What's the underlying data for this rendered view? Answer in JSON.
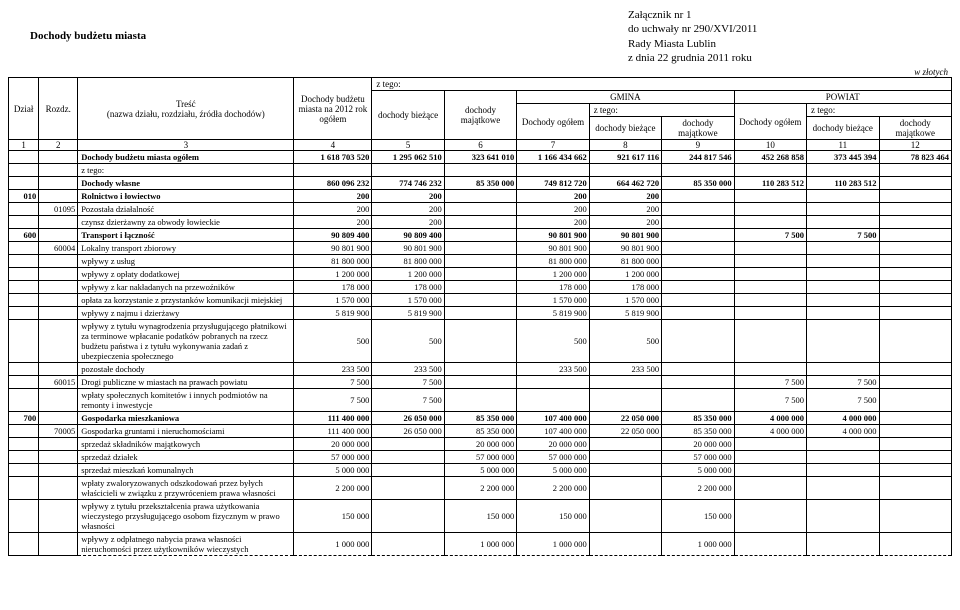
{
  "attachment": {
    "line1": "Załącznik nr 1",
    "line2": "do uchwały nr 290/XVI/2011",
    "line3": "Rady Miasta Lublin",
    "line4": "z dnia 22 grudnia 2011 roku"
  },
  "title_left": "Dochody budżetu miasta",
  "currency_note": "w złotych",
  "headers": {
    "dzial": "Dział",
    "rozdz": "Rozdz.",
    "tresc": "Treść\n(nazwa działu, rozdziału, źródła dochodów)",
    "doch_budzet": "Dochody budżetu miasta na 2012 rok ogółem",
    "z_tego": "z tego:",
    "gmina": "GMINA",
    "powiat": "POWIAT",
    "doch_biezace": "dochody bieżące",
    "doch_majatkowe": "dochody majątkowe",
    "doch_ogolem": "Dochody ogółem"
  },
  "colnums": [
    "1",
    "2",
    "3",
    "4",
    "5",
    "6",
    "7",
    "8",
    "9",
    "10",
    "11",
    "12"
  ],
  "rows": [
    {
      "style": "bold",
      "d": "",
      "r": "",
      "t": "Dochody budżetu miasta ogółem",
      "v": [
        "1 618 703 520",
        "1 295 062 510",
        "323 641 010",
        "1 166 434 662",
        "921 617 116",
        "244 817 546",
        "452 268 858",
        "373 445 394",
        "78 823 464"
      ]
    },
    {
      "style": "",
      "d": "",
      "r": "",
      "t": "z tego:",
      "v": [
        "",
        "",
        "",
        "",
        "",
        "",
        "",
        "",
        ""
      ]
    },
    {
      "style": "bold",
      "d": "",
      "r": "",
      "t": "Dochody własne",
      "v": [
        "860 096 232",
        "774 746 232",
        "85 350 000",
        "749 812 720",
        "664 462 720",
        "85 350 000",
        "110 283 512",
        "110 283 512",
        ""
      ]
    },
    {
      "style": "bold",
      "d": "010",
      "r": "",
      "t": "Rolnictwo i łowiectwo",
      "v": [
        "200",
        "200",
        "",
        "200",
        "200",
        "",
        "",
        "",
        ""
      ]
    },
    {
      "style": "",
      "d": "",
      "r": "01095",
      "t": "Pozostała działalność",
      "v": [
        "200",
        "200",
        "",
        "200",
        "200",
        "",
        "",
        "",
        ""
      ]
    },
    {
      "style": "",
      "d": "",
      "r": "",
      "t": "czynsz dzierżawny za obwody łowieckie",
      "v": [
        "200",
        "200",
        "",
        "200",
        "200",
        "",
        "",
        "",
        ""
      ]
    },
    {
      "style": "bold",
      "d": "600",
      "r": "",
      "t": "Transport i łączność",
      "v": [
        "90 809 400",
        "90 809 400",
        "",
        "90 801 900",
        "90 801 900",
        "",
        "7 500",
        "7 500",
        ""
      ]
    },
    {
      "style": "",
      "d": "",
      "r": "60004",
      "t": "Lokalny transport zbiorowy",
      "v": [
        "90 801 900",
        "90 801 900",
        "",
        "90 801 900",
        "90 801 900",
        "",
        "",
        "",
        ""
      ]
    },
    {
      "style": "dash",
      "d": "",
      "r": "",
      "t": "wpływy z usług",
      "v": [
        "81 800 000",
        "81 800 000",
        "",
        "81 800 000",
        "81 800 000",
        "",
        "",
        "",
        ""
      ]
    },
    {
      "style": "dash",
      "d": "",
      "r": "",
      "t": "wpływy z opłaty dodatkowej",
      "v": [
        "1 200 000",
        "1 200 000",
        "",
        "1 200 000",
        "1 200 000",
        "",
        "",
        "",
        ""
      ]
    },
    {
      "style": "dash",
      "d": "",
      "r": "",
      "t": "wpływy z kar nakładanych na przewoźników",
      "v": [
        "178 000",
        "178 000",
        "",
        "178 000",
        "178 000",
        "",
        "",
        "",
        ""
      ]
    },
    {
      "style": "dash",
      "d": "",
      "r": "",
      "t": "opłata za korzystanie z przystanków komunikacji miejskiej",
      "v": [
        "1 570 000",
        "1 570 000",
        "",
        "1 570 000",
        "1 570 000",
        "",
        "",
        "",
        ""
      ]
    },
    {
      "style": "dash",
      "d": "",
      "r": "",
      "t": "wpływy z najmu i dzierżawy",
      "v": [
        "5 819 900",
        "5 819 900",
        "",
        "5 819 900",
        "5 819 900",
        "",
        "",
        "",
        ""
      ]
    },
    {
      "style": "dash",
      "d": "",
      "r": "",
      "t": "wpływy z tytułu wynagrodzenia przysługującego płatnikowi za terminowe wpłacanie podatków pobranych na rzecz budżetu państwa i z tytułu wykonywania zadań z ubezpieczenia społecznego",
      "v": [
        "500",
        "500",
        "",
        "500",
        "500",
        "",
        "",
        "",
        ""
      ]
    },
    {
      "style": "",
      "d": "",
      "r": "",
      "t": "pozostałe dochody",
      "v": [
        "233 500",
        "233 500",
        "",
        "233 500",
        "233 500",
        "",
        "",
        "",
        ""
      ]
    },
    {
      "style": "",
      "d": "",
      "r": "60015",
      "t": "Drogi publiczne w miastach na prawach powiatu",
      "v": [
        "7 500",
        "7 500",
        "",
        "",
        "",
        "",
        "7 500",
        "7 500",
        ""
      ]
    },
    {
      "style": "",
      "d": "",
      "r": "",
      "t": "wpłaty społecznych komitetów i innych podmiotów na remonty i inwestycje",
      "v": [
        "7 500",
        "7 500",
        "",
        "",
        "",
        "",
        "7 500",
        "7 500",
        ""
      ]
    },
    {
      "style": "bold",
      "d": "700",
      "r": "",
      "t": "Gospodarka mieszkaniowa",
      "v": [
        "111 400 000",
        "26 050 000",
        "85 350 000",
        "107 400 000",
        "22 050 000",
        "85 350 000",
        "4 000 000",
        "4 000 000",
        ""
      ]
    },
    {
      "style": "",
      "d": "",
      "r": "70005",
      "t": "Gospodarka gruntami i nieruchomościami",
      "v": [
        "111 400 000",
        "26 050 000",
        "85 350 000",
        "107 400 000",
        "22 050 000",
        "85 350 000",
        "4 000 000",
        "4 000 000",
        ""
      ]
    },
    {
      "style": "dash",
      "d": "",
      "r": "",
      "t": "sprzedaż składników majątkowych",
      "v": [
        "20 000 000",
        "",
        "20 000 000",
        "20 000 000",
        "",
        "20 000 000",
        "",
        "",
        ""
      ]
    },
    {
      "style": "dash",
      "d": "",
      "r": "",
      "t": "sprzedaż działek",
      "v": [
        "57 000 000",
        "",
        "57 000 000",
        "57 000 000",
        "",
        "57 000 000",
        "",
        "",
        ""
      ]
    },
    {
      "style": "dash",
      "d": "",
      "r": "",
      "t": "sprzedaż mieszkań komunalnych",
      "v": [
        "5 000 000",
        "",
        "5 000 000",
        "5 000 000",
        "",
        "5 000 000",
        "",
        "",
        ""
      ]
    },
    {
      "style": "dash",
      "d": "",
      "r": "",
      "t": "wpłaty zwaloryzowanych odszkodowań przez byłych właścicieli w związku z przywróceniem prawa własności",
      "v": [
        "2 200 000",
        "",
        "2 200 000",
        "2 200 000",
        "",
        "2 200 000",
        "",
        "",
        ""
      ]
    },
    {
      "style": "dash",
      "d": "",
      "r": "",
      "t": "wpływy z tytułu przekształcenia prawa użytkowania wieczystego przysługującego osobom fizycznym w prawo własności",
      "v": [
        "150 000",
        "",
        "150 000",
        "150 000",
        "",
        "150 000",
        "",
        "",
        ""
      ]
    },
    {
      "style": "dash",
      "d": "",
      "r": "",
      "t": "wpływy z odpłatnego nabycia prawa własności nieruchomości przez użytkowników wieczystych",
      "v": [
        "1 000 000",
        "",
        "1 000 000",
        "1 000 000",
        "",
        "1 000 000",
        "",
        "",
        ""
      ]
    }
  ]
}
